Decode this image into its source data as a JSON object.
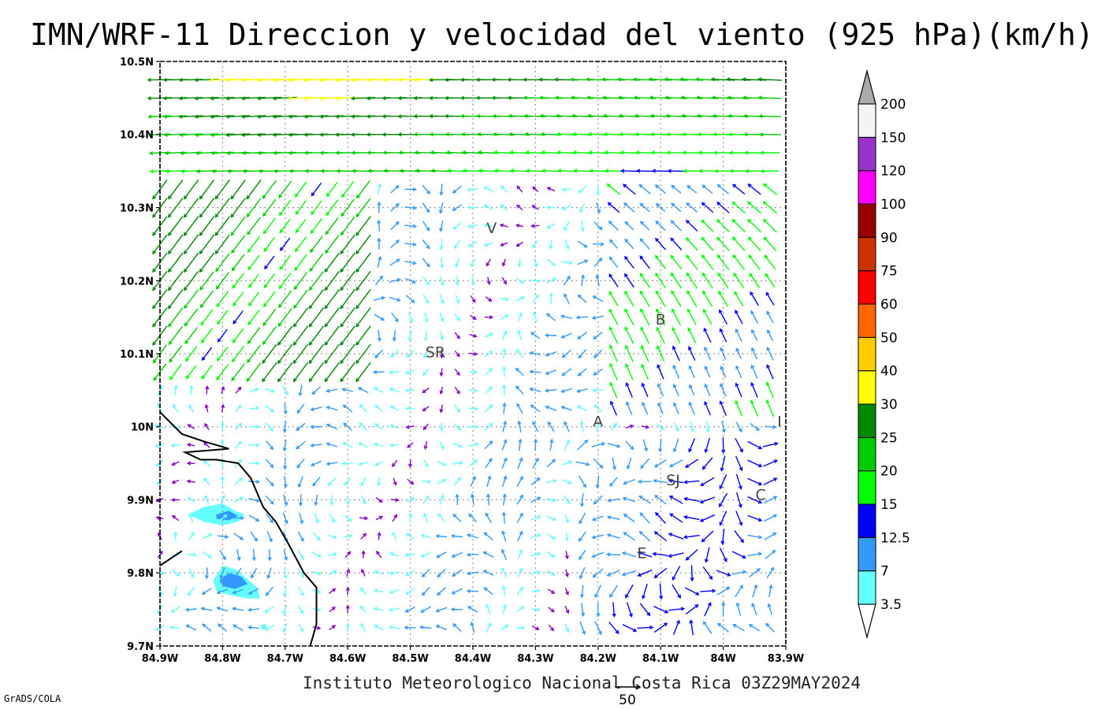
{
  "title": "IMN/WRF-11 Direccion y velocidad del viento (925 hPa)(km/h)",
  "footer": "Instituto Meteorologico Nacional Costa Rica 03Z29MAY2024",
  "software": "GrADS/COLA",
  "reference_vector": {
    "label": "50",
    "speed": 50
  },
  "axes": {
    "lon_range": [
      -84.9,
      -83.9
    ],
    "lat_range": [
      9.7,
      10.5
    ],
    "lon_labels": [
      {
        "v": -84.9,
        "t": "84.9W"
      },
      {
        "v": -84.8,
        "t": "84.8W"
      },
      {
        "v": -84.7,
        "t": "84.7W"
      },
      {
        "v": -84.6,
        "t": "84.6W"
      },
      {
        "v": -84.5,
        "t": "84.5W"
      },
      {
        "v": -84.4,
        "t": "84.4W"
      },
      {
        "v": -84.3,
        "t": "84.3W"
      },
      {
        "v": -84.2,
        "t": "84.2W"
      },
      {
        "v": -84.1,
        "t": "84.1W"
      },
      {
        "v": -84.0,
        "t": "84W"
      },
      {
        "v": -83.9,
        "t": "83.9W"
      }
    ],
    "lat_labels": [
      {
        "v": 9.7,
        "t": "9.7N"
      },
      {
        "v": 9.8,
        "t": "9.8N"
      },
      {
        "v": 9.9,
        "t": "9.9N"
      },
      {
        "v": 10.0,
        "t": "10N"
      },
      {
        "v": 10.1,
        "t": "10.1N"
      },
      {
        "v": 10.2,
        "t": "10.2N"
      },
      {
        "v": 10.3,
        "t": "10.3N"
      },
      {
        "v": 10.4,
        "t": "10.4N"
      },
      {
        "v": 10.5,
        "t": "10.5N"
      }
    ]
  },
  "cities": [
    {
      "label": "V",
      "lon": -84.37,
      "lat": 10.265
    },
    {
      "label": "B",
      "lon": -84.1,
      "lat": 10.14
    },
    {
      "label": "SR",
      "lon": -84.46,
      "lat": 10.095
    },
    {
      "label": "A",
      "lon": -84.2,
      "lat": 10.0
    },
    {
      "label": "I",
      "lon": -83.91,
      "lat": 10.0
    },
    {
      "label": "SJ",
      "lon": -84.08,
      "lat": 9.92
    },
    {
      "label": "C",
      "lon": -83.94,
      "lat": 9.9
    },
    {
      "label": "E",
      "lon": -84.13,
      "lat": 9.82
    }
  ],
  "colorbar": {
    "levels": [
      "3.5",
      "7",
      "12.5",
      "15",
      "20",
      "25",
      "30",
      "40",
      "50",
      "60",
      "75",
      "90",
      "100",
      "120",
      "150",
      "200"
    ],
    "colors": [
      "#66ffff",
      "#3399ff",
      "#0000ff",
      "#00ff00",
      "#00cc00",
      "#008800",
      "#ffff00",
      "#ffcc00",
      "#ff6600",
      "#ff0000",
      "#cc3300",
      "#990000",
      "#ff00ff",
      "#9933cc",
      "#f4f4f4"
    ],
    "below_color": "#ffffff",
    "above_color": "#aaaaaa"
  },
  "coastline": [
    [
      -84.9,
      10.02
    ],
    [
      -84.865,
      9.99
    ],
    [
      -84.83,
      9.98
    ],
    [
      -84.81,
      9.975
    ],
    [
      -84.79,
      9.97
    ],
    [
      -84.86,
      9.965
    ],
    [
      -84.835,
      9.955
    ],
    [
      -84.81,
      9.955
    ],
    [
      -84.775,
      9.95
    ],
    [
      -84.755,
      9.93
    ],
    [
      -84.735,
      9.89
    ],
    [
      -84.715,
      9.87
    ],
    [
      -84.695,
      9.84
    ],
    [
      -84.67,
      9.8
    ],
    [
      -84.65,
      9.78
    ],
    [
      -84.65,
      9.73
    ],
    [
      -84.66,
      9.7
    ]
  ],
  "coastline2": [
    [
      -84.9,
      9.81
    ],
    [
      -84.865,
      9.83
    ]
  ],
  "shaded_areas": [
    {
      "level": "3.5",
      "color": "#66ffff",
      "points": [
        [
          -84.855,
          9.88
        ],
        [
          -84.83,
          9.89
        ],
        [
          -84.8,
          9.895
        ],
        [
          -84.78,
          9.885
        ],
        [
          -84.765,
          9.88
        ],
        [
          -84.775,
          9.87
        ],
        [
          -84.8,
          9.865
        ],
        [
          -84.83,
          9.87
        ]
      ]
    },
    {
      "level": "7",
      "color": "#3399ff",
      "points": [
        [
          -84.81,
          9.88
        ],
        [
          -84.79,
          9.885
        ],
        [
          -84.775,
          9.878
        ],
        [
          -84.79,
          9.872
        ],
        [
          -84.81,
          9.874
        ]
      ]
    },
    {
      "level": "3.5",
      "color": "#66ffff",
      "points": [
        [
          -84.815,
          9.79
        ],
        [
          -84.8,
          9.81
        ],
        [
          -84.78,
          9.805
        ],
        [
          -84.765,
          9.795
        ],
        [
          -84.745,
          9.78
        ],
        [
          -84.74,
          9.765
        ],
        [
          -84.76,
          9.765
        ],
        [
          -84.79,
          9.77
        ],
        [
          -84.81,
          9.775
        ]
      ]
    },
    {
      "level": "7",
      "color": "#3399ff",
      "points": [
        [
          -84.805,
          9.79
        ],
        [
          -84.79,
          9.8
        ],
        [
          -84.77,
          9.795
        ],
        [
          -84.76,
          9.785
        ],
        [
          -84.78,
          9.778
        ],
        [
          -84.8,
          9.782
        ]
      ]
    },
    {
      "level": "3.5",
      "color": "#66ffff",
      "points": [
        [
          -84.74,
          9.728
        ],
        [
          -84.732,
          9.73
        ],
        [
          -84.728,
          9.725
        ],
        [
          -84.736,
          9.722
        ]
      ]
    }
  ]
}
